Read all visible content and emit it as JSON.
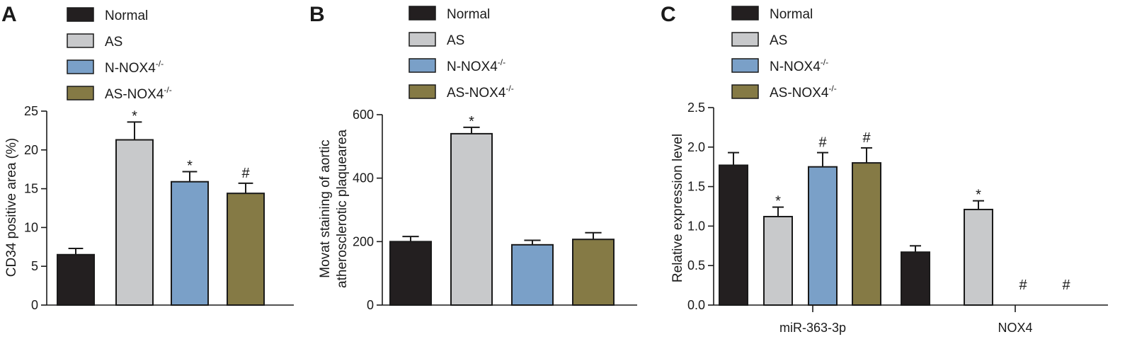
{
  "legend": [
    "Normal",
    "AS",
    "N-NOX4",
    "AS-NOX4"
  ],
  "legend_superscript": "-/-",
  "colors": [
    "#231f20",
    "#c8c9cb",
    "#7aa0c8",
    "#857a45"
  ],
  "chart_data": [
    {
      "type": "bar",
      "panel": "A",
      "categories": [
        "Normal",
        "AS",
        "N-NOX4-/-",
        "AS-NOX4-/-"
      ],
      "values": [
        6.5,
        21.3,
        15.9,
        14.4
      ],
      "errors": [
        0.8,
        2.3,
        1.3,
        1.3
      ],
      "significance": [
        "",
        "*",
        "*",
        "#"
      ],
      "ylabel": "CD34 positive area (%)",
      "ylim": [
        0,
        25
      ],
      "yticks": [
        0,
        5,
        10,
        15,
        20,
        25
      ],
      "ytick_labels": [
        "0",
        "5",
        "10",
        "15",
        "20",
        "25"
      ]
    },
    {
      "type": "bar",
      "panel": "B",
      "categories": [
        "Normal",
        "AS",
        "N-NOX4-/-",
        "AS-NOX4-/-"
      ],
      "values": [
        200,
        540,
        190,
        207
      ],
      "errors": [
        16,
        20,
        14,
        21
      ],
      "significance": [
        "",
        "*",
        "",
        ""
      ],
      "ylabel": [
        "Movat staining of aortic",
        "atherosclerotic plaquearea"
      ],
      "ylim": [
        0,
        600
      ],
      "yticks": [
        0,
        200,
        400,
        600
      ],
      "ytick_labels": [
        "0",
        "200",
        "400",
        "600"
      ]
    },
    {
      "type": "bar",
      "panel": "C",
      "categories": [
        "miR-363-3p",
        "NOX4"
      ],
      "series": [
        {
          "name": "Normal",
          "values": [
            1.77,
            0.67
          ],
          "errors": [
            0.16,
            0.08
          ],
          "significance": [
            "",
            ""
          ]
        },
        {
          "name": "AS",
          "values": [
            1.12,
            1.21
          ],
          "errors": [
            0.12,
            0.11
          ],
          "significance": [
            "*",
            "*"
          ]
        },
        {
          "name": "N-NOX4-/-",
          "values": [
            1.75,
            0
          ],
          "errors": [
            0.18,
            0
          ],
          "significance": [
            "#",
            "#"
          ]
        },
        {
          "name": "AS-NOX4-/-",
          "values": [
            1.8,
            0
          ],
          "errors": [
            0.19,
            0
          ],
          "significance": [
            "#",
            "#"
          ]
        }
      ],
      "ylabel": "Relative expression level",
      "ylim": [
        0,
        2.5
      ],
      "yticks": [
        0,
        0.5,
        1.0,
        1.5,
        2.0,
        2.5
      ],
      "ytick_labels": [
        "0.0",
        "0.5",
        "1.0",
        "1.5",
        "2.0",
        "2.5"
      ]
    }
  ]
}
